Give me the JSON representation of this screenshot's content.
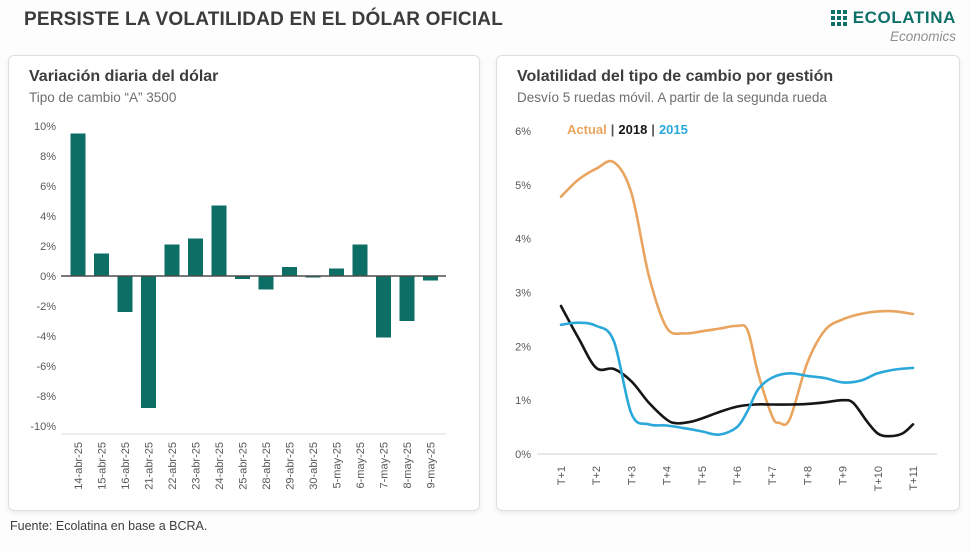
{
  "page": {
    "title": "PERSISTE LA VOLATILIDAD EN EL DÓLAR OFICIAL",
    "footer": "Fuente: Ecolatina en base a BCRA."
  },
  "logo": {
    "name": "ECOLATINA",
    "tagline": "Economics",
    "color": "#0e7168"
  },
  "left_panel": {
    "title": "Variación diaria del dólar",
    "subtitle": "Tipo de cambio “A” 3500"
  },
  "right_panel": {
    "title": "Volatilidad del tipo de cambio por gestión",
    "subtitle": "Desvío 5 ruedas móvil. A partir de la segunda rueda"
  },
  "chart_data": [
    {
      "type": "bar",
      "title": "Variación diaria del dólar",
      "subtitle": "Tipo de cambio “A” 3500",
      "categories": [
        "14-abr-25",
        "15-abr-25",
        "16-abr-25",
        "21-abr-25",
        "22-abr-25",
        "23-abr-25",
        "24-abr-25",
        "25-abr-25",
        "28-abr-25",
        "29-abr-25",
        "30-abr-25",
        "5-may-25",
        "6-may-25",
        "7-may-25",
        "8-may-25",
        "9-may-25"
      ],
      "values": [
        9.5,
        1.5,
        -2.4,
        -8.8,
        2.1,
        2.5,
        4.7,
        -0.2,
        -0.9,
        0.6,
        -0.1,
        0.5,
        2.1,
        -4.1,
        -3.0,
        -0.3
      ],
      "unit": "%",
      "bar_color": "#0d6e66",
      "ylim": [
        -10,
        10
      ],
      "yticks": [
        10,
        8,
        6,
        4,
        2,
        0,
        -2,
        -4,
        -6,
        -8,
        -10
      ],
      "grid": false
    },
    {
      "type": "line",
      "title": "Volatilidad del tipo de cambio por gestión",
      "subtitle": "Desvío 5 ruedas móvil. A partir de la segunda rueda",
      "x_categories": [
        "T+1",
        "T+2",
        "T+3",
        "T+4",
        "T+5",
        "T+6",
        "T+7",
        "T+8",
        "T+9",
        "T+10",
        "T+11"
      ],
      "unit": "%",
      "ylim": [
        0,
        6
      ],
      "yticks": [
        6,
        5,
        4,
        3,
        2,
        1,
        0
      ],
      "grid": false,
      "legend_position": "top-left-inside",
      "legend_separator": "|",
      "series": [
        {
          "name": "Actual",
          "color": "#e9a55f",
          "x": [
            1,
            1.5,
            2,
            2.5,
            3,
            3.5,
            4,
            4.5,
            5,
            5.5,
            6,
            6.3,
            6.6,
            7,
            7.2,
            7.5,
            8,
            8.5,
            9,
            9.5,
            10,
            10.5,
            11
          ],
          "y": [
            4.78,
            5.1,
            5.3,
            5.42,
            4.85,
            3.3,
            2.35,
            2.24,
            2.28,
            2.33,
            2.38,
            2.3,
            1.5,
            0.7,
            0.58,
            0.65,
            1.7,
            2.3,
            2.5,
            2.6,
            2.65,
            2.65,
            2.6
          ]
        },
        {
          "name": "2018",
          "color": "#161616",
          "x": [
            1,
            1.5,
            2,
            2.5,
            3,
            3.5,
            4,
            4.3,
            4.7,
            5,
            5.5,
            6,
            6.5,
            7,
            7.5,
            8,
            8.5,
            9,
            9.3,
            9.7,
            10,
            10.3,
            10.7,
            11
          ],
          "y": [
            2.75,
            2.15,
            1.6,
            1.58,
            1.35,
            0.95,
            0.64,
            0.57,
            0.6,
            0.66,
            0.78,
            0.88,
            0.92,
            0.92,
            0.92,
            0.93,
            0.96,
            1.0,
            0.95,
            0.6,
            0.38,
            0.33,
            0.38,
            0.55
          ]
        },
        {
          "name": "2015",
          "color": "#2aa8da",
          "x": [
            1,
            1.5,
            2,
            2.5,
            3,
            3.5,
            4,
            4.5,
            5,
            5.5,
            6,
            6.3,
            6.6,
            7,
            7.5,
            8,
            8.5,
            9,
            9.5,
            10,
            10.5,
            11
          ],
          "y": [
            2.4,
            2.44,
            2.38,
            2.1,
            0.75,
            0.55,
            0.53,
            0.48,
            0.42,
            0.36,
            0.5,
            0.8,
            1.2,
            1.42,
            1.5,
            1.45,
            1.41,
            1.33,
            1.36,
            1.5,
            1.57,
            1.6
          ]
        }
      ]
    }
  ]
}
